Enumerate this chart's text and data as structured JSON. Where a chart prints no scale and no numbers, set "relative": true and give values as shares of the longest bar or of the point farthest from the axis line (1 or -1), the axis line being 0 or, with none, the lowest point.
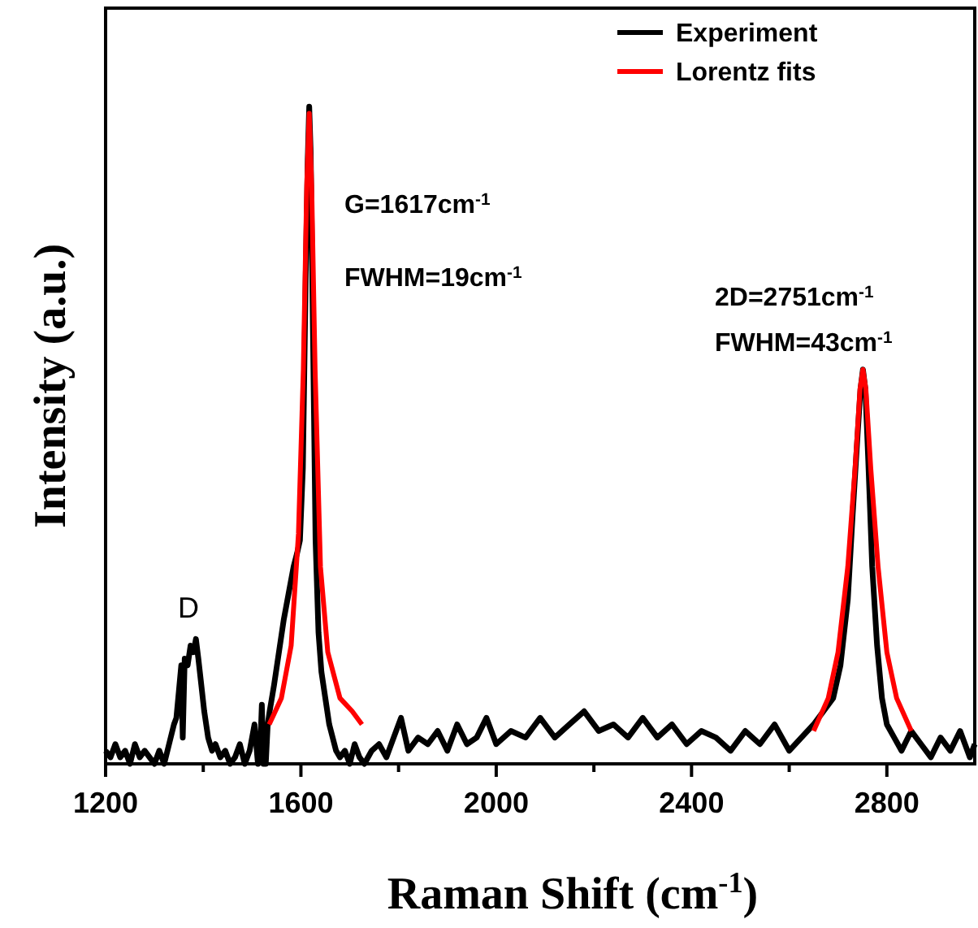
{
  "chart_data": {
    "type": "line",
    "relative": true,
    "xlabel": "Raman Shift (cm$^{-1}$)",
    "ylabel": "Intensity (a.u.)",
    "xlim": [
      1200,
      2980
    ],
    "xticks": [
      1200,
      {
        "value": 1400,
        "label": null
      },
      1600,
      {
        "value": 1800,
        "label": null
      },
      2000,
      {
        "value": 2200,
        "label": null
      },
      2400,
      {
        "value": 2600,
        "label": null
      },
      2800
    ],
    "legend": "top right",
    "grid": false,
    "annotations": [
      "D",
      "G=1617cm$^{-1}$",
      "FWHM=19cm$^{-1}$",
      "2D=2751cm$^{-1}$",
      "FWHM=43cm$^{-1}$"
    ],
    "series": [
      {
        "name": "Experiment",
        "color": "#000000",
        "x": [
          1200,
          1210,
          1220,
          1230,
          1240,
          1250,
          1260,
          1270,
          1280,
          1290,
          1300,
          1310,
          1320,
          1330,
          1340,
          1345,
          1350,
          1355,
          1358,
          1362,
          1368,
          1374,
          1380,
          1385,
          1390,
          1396,
          1402,
          1410,
          1418,
          1425,
          1435,
          1445,
          1455,
          1465,
          1475,
          1485,
          1495,
          1505,
          1512,
          1517,
          1520,
          1523,
          1528,
          1532,
          1536,
          1545,
          1555,
          1565,
          1575,
          1585,
          1592,
          1598,
          1604,
          1610,
          1614,
          1617,
          1620,
          1624,
          1630,
          1636,
          1642,
          1650,
          1658,
          1665,
          1672,
          1680,
          1690,
          1700,
          1710,
          1720,
          1730,
          1745,
          1760,
          1775,
          1790,
          1805,
          1820,
          1840,
          1860,
          1880,
          1900,
          1920,
          1940,
          1960,
          1980,
          2000,
          2030,
          2060,
          2090,
          2120,
          2150,
          2180,
          2210,
          2240,
          2270,
          2300,
          2330,
          2360,
          2390,
          2420,
          2450,
          2480,
          2510,
          2540,
          2570,
          2600,
          2625,
          2650,
          2670,
          2690,
          2705,
          2720,
          2730,
          2740,
          2746,
          2751,
          2756,
          2762,
          2770,
          2780,
          2790,
          2800,
          2815,
          2830,
          2850,
          2870,
          2890,
          2910,
          2930,
          2950,
          2970,
          2980
        ],
        "values": [
          0.02,
          0.01,
          0.03,
          0.01,
          0.02,
          0.0,
          0.03,
          0.01,
          0.02,
          0.01,
          0.0,
          0.02,
          0.0,
          0.03,
          0.06,
          0.07,
          0.11,
          0.15,
          0.04,
          0.16,
          0.15,
          0.18,
          0.17,
          0.19,
          0.16,
          0.12,
          0.08,
          0.04,
          0.02,
          0.03,
          0.01,
          0.02,
          0.0,
          0.01,
          0.03,
          0.0,
          0.02,
          0.06,
          0.0,
          0.03,
          0.09,
          0.0,
          0.0,
          0.06,
          0.08,
          0.12,
          0.17,
          0.22,
          0.26,
          0.3,
          0.32,
          0.34,
          0.45,
          0.75,
          0.92,
          1.0,
          0.93,
          0.7,
          0.34,
          0.2,
          0.14,
          0.1,
          0.06,
          0.04,
          0.02,
          0.01,
          0.02,
          0.0,
          0.03,
          0.01,
          0.0,
          0.02,
          0.03,
          0.01,
          0.04,
          0.07,
          0.02,
          0.04,
          0.03,
          0.05,
          0.02,
          0.06,
          0.03,
          0.04,
          0.07,
          0.03,
          0.05,
          0.04,
          0.07,
          0.04,
          0.06,
          0.08,
          0.05,
          0.06,
          0.04,
          0.07,
          0.04,
          0.06,
          0.03,
          0.05,
          0.04,
          0.02,
          0.05,
          0.03,
          0.06,
          0.02,
          0.04,
          0.06,
          0.08,
          0.1,
          0.15,
          0.25,
          0.38,
          0.5,
          0.57,
          0.6,
          0.57,
          0.46,
          0.3,
          0.18,
          0.1,
          0.06,
          0.04,
          0.02,
          0.05,
          0.03,
          0.01,
          0.04,
          0.02,
          0.05,
          0.01,
          0.03
        ]
      },
      {
        "name": "Lorentz fits",
        "color": "#ff0000",
        "x": [
          1535,
          1560,
          1580,
          1595,
          1605,
          1612,
          1617,
          1622,
          1629,
          1640,
          1655,
          1680,
          1705,
          1725,
          1730,
          2650,
          2680,
          2700,
          2720,
          2735,
          2745,
          2751,
          2757,
          2767,
          2782,
          2800,
          2820,
          2850
        ],
        "values": [
          0.06,
          0.1,
          0.18,
          0.35,
          0.6,
          0.88,
          0.99,
          0.88,
          0.6,
          0.3,
          0.17,
          0.1,
          0.08,
          0.06,
          null,
          0.05,
          0.1,
          0.17,
          0.3,
          0.45,
          0.57,
          0.6,
          0.57,
          0.45,
          0.3,
          0.17,
          0.1,
          0.05
        ]
      }
    ]
  }
}
